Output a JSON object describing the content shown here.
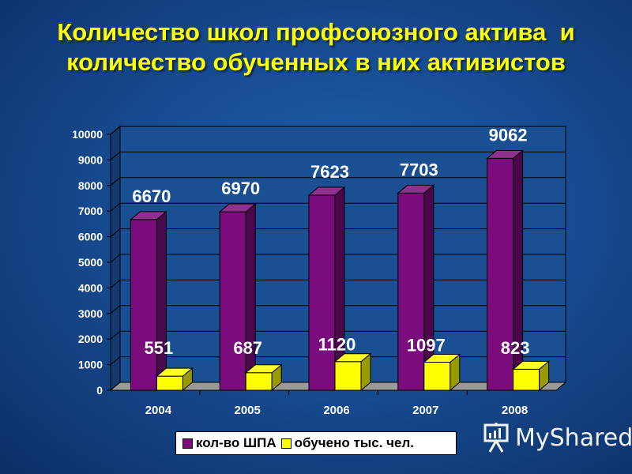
{
  "title": {
    "line1": "Количество школ профсоюзного актива  и",
    "line2": "количество обученных в них активистов"
  },
  "watermark": {
    "text": "MyShared",
    "icon": "presentation-board-icon"
  },
  "colors": {
    "background": "#174c92",
    "title": "#ffff00",
    "series1": "#7b0c7b",
    "series2": "#ffff00",
    "data_label": "#ffffff"
  },
  "chart_data": {
    "type": "bar",
    "categories": [
      "2004",
      "2005",
      "2006",
      "2007",
      "2008"
    ],
    "series": [
      {
        "name": "кол-во ШПА",
        "values": [
          6670,
          6970,
          7623,
          7703,
          9062
        ],
        "color": "#7b0c7b"
      },
      {
        "name": "обучено тыс. чел.",
        "values": [
          551,
          687,
          1120,
          1097,
          823
        ],
        "color": "#ffff00"
      }
    ],
    "ylim": [
      0,
      10000
    ],
    "yticks": [
      "0",
      "1000",
      "2000",
      "3000",
      "4000",
      "5000",
      "6000",
      "7000",
      "8000",
      "9000",
      "10000"
    ],
    "grid": true,
    "legend_position": "bottom",
    "style": "3d"
  }
}
